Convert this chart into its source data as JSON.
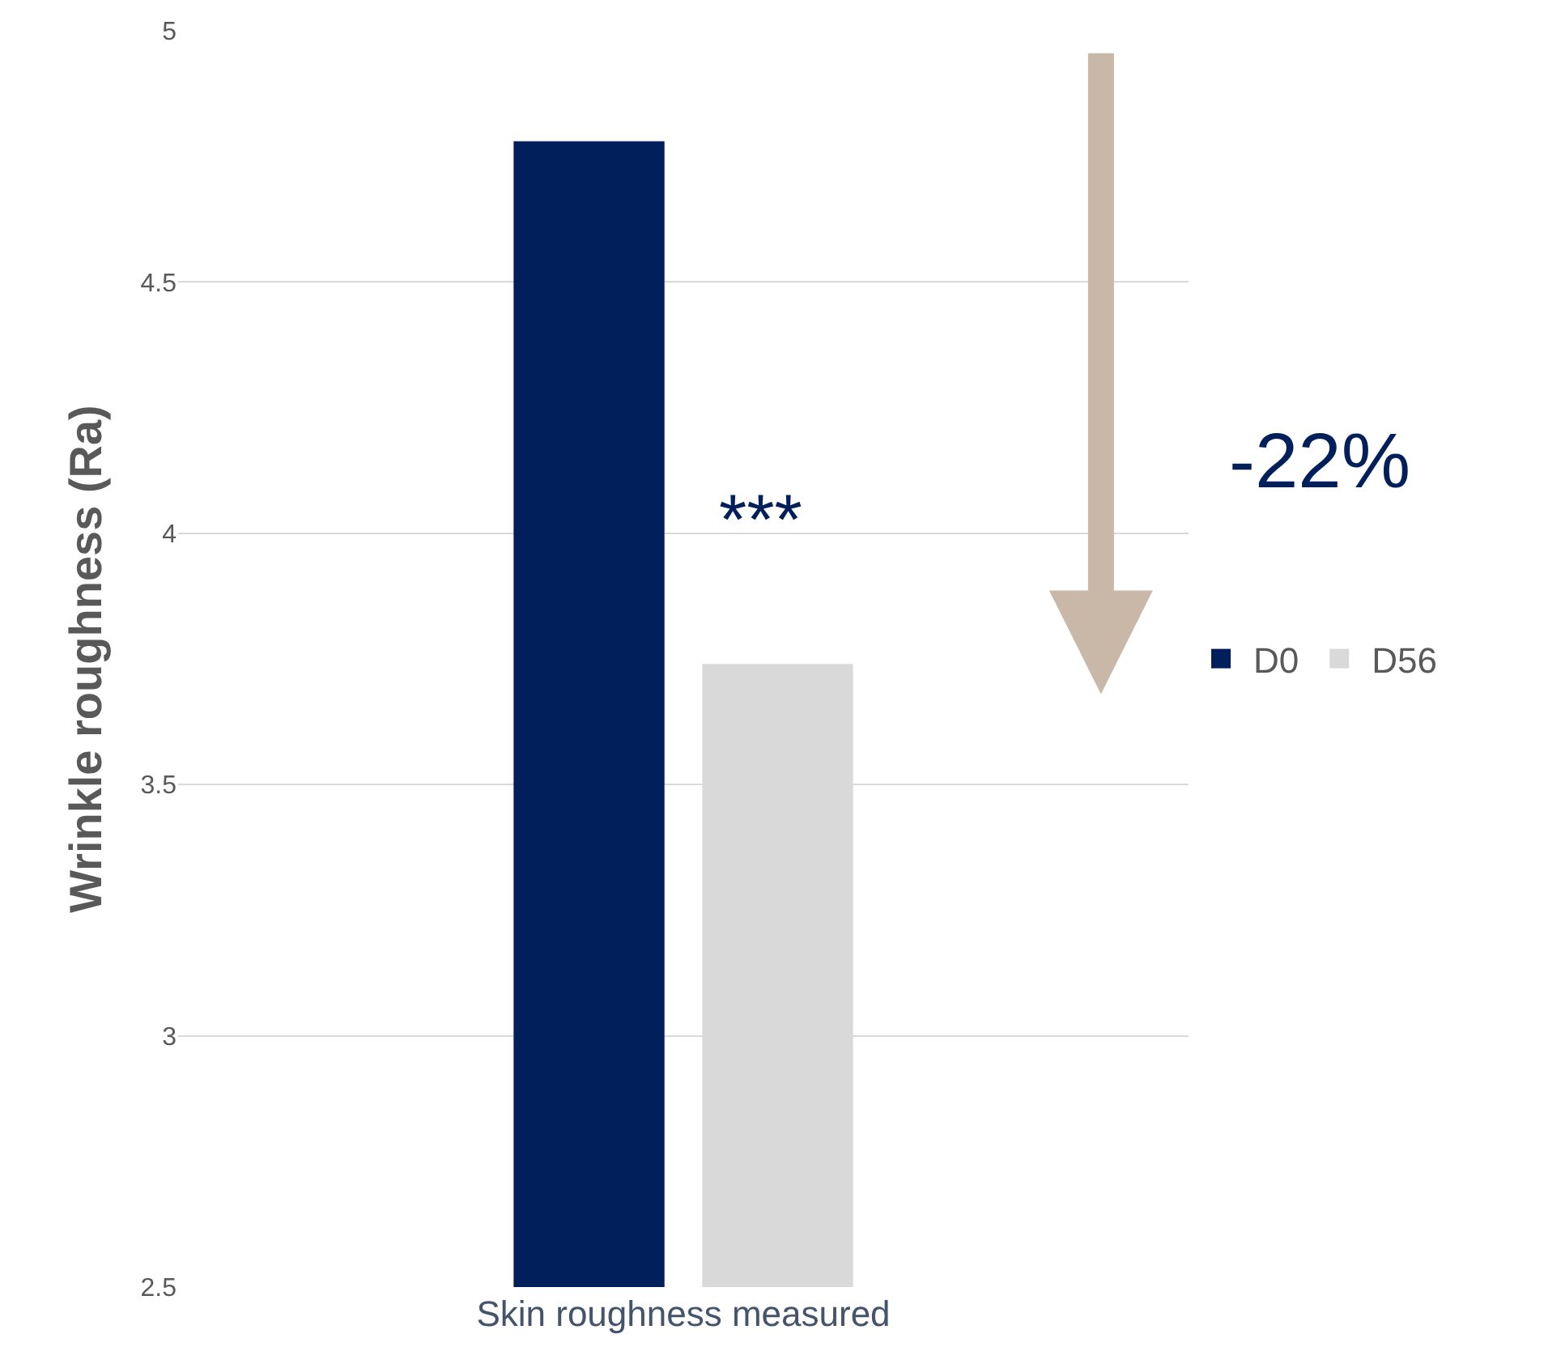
{
  "chart_data": {
    "type": "bar",
    "xlabel": "Skin roughness measured",
    "ylabel": "Wrinkle roughness (Ra)",
    "categories": [
      null
    ],
    "series": [
      {
        "name": "D0",
        "color": "#001f5b",
        "values": [
          4.78
        ]
      },
      {
        "name": "D56",
        "color": "#d9d9d9",
        "values": [
          3.74
        ]
      }
    ],
    "ylim": [
      2.5,
      5
    ],
    "yticks": [
      2.5,
      3,
      3.5,
      4,
      4.5,
      5
    ],
    "grid": "y",
    "legend": "right",
    "annotations": [
      "***",
      "-22%"
    ]
  }
}
